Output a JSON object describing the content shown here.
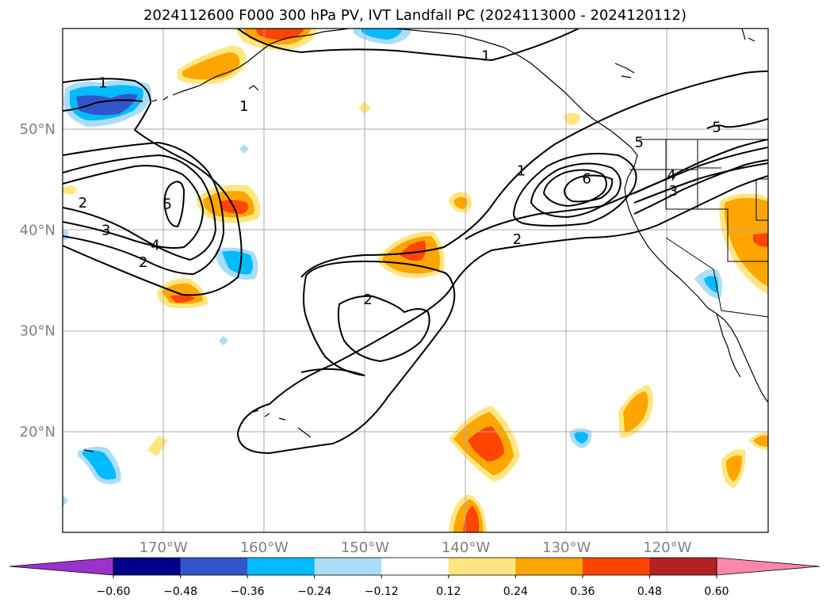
{
  "title": "2024112600 F000 300 hPa PV, IVT Landfall PC (2024113000 - 2024120112)",
  "map": {
    "lon_range": [
      -180,
      -110
    ],
    "lat_range": [
      10,
      60
    ],
    "gridlines": true,
    "lon_ticks": [
      {
        "lon": -170,
        "label": "170°W"
      },
      {
        "lon": -160,
        "label": "160°W"
      },
      {
        "lon": -150,
        "label": "150°W"
      },
      {
        "lon": -140,
        "label": "140°W"
      },
      {
        "lon": -130,
        "label": "130°W"
      },
      {
        "lon": -120,
        "label": "120°W"
      }
    ],
    "lat_ticks": [
      {
        "lat": 50,
        "label": "50°N"
      },
      {
        "lat": 40,
        "label": "40°N"
      },
      {
        "lat": 30,
        "label": "30°N"
      },
      {
        "lat": 20,
        "label": "20°N"
      }
    ],
    "contour_labels": [
      {
        "text": "1",
        "lon": -176,
        "lat": 54.6
      },
      {
        "text": "1",
        "lon": -162,
        "lat": 52.3
      },
      {
        "text": "1",
        "lon": -138,
        "lat": 57.3
      },
      {
        "text": "1",
        "lon": -134.5,
        "lat": 45.9
      },
      {
        "text": "2",
        "lon": -178,
        "lat": 42.7
      },
      {
        "text": "5",
        "lon": -169.6,
        "lat": 42.6
      },
      {
        "text": "3",
        "lon": -175.7,
        "lat": 40
      },
      {
        "text": "4",
        "lon": -170.8,
        "lat": 38.5
      },
      {
        "text": "2",
        "lon": -172,
        "lat": 36.8
      },
      {
        "text": "2",
        "lon": -149.7,
        "lat": 33.1
      },
      {
        "text": "2",
        "lon": -134.9,
        "lat": 39.1
      },
      {
        "text": "6",
        "lon": -128,
        "lat": 45.1
      },
      {
        "text": "4",
        "lon": -119.6,
        "lat": 45.4
      },
      {
        "text": "3",
        "lon": -119.4,
        "lat": 43.9
      },
      {
        "text": "5",
        "lon": -115.1,
        "lat": 50.2
      },
      {
        "text": "5",
        "lon": -122.8,
        "lat": 48.7
      }
    ]
  },
  "colorbar": {
    "extend": "both",
    "under_color": "#9933cc",
    "over_color": "#ff88aa",
    "colors": [
      "#000088",
      "#3355cc",
      "#00bbff",
      "#aaddf8",
      "#ffffff",
      "#ffe680",
      "#ffa500",
      "#ff4500",
      "#b22222"
    ],
    "tick_labels": [
      "−0.60",
      "−0.48",
      "−0.36",
      "−0.24",
      "−0.12",
      "0.12",
      "0.24",
      "0.36",
      "0.48",
      "0.60"
    ]
  }
}
